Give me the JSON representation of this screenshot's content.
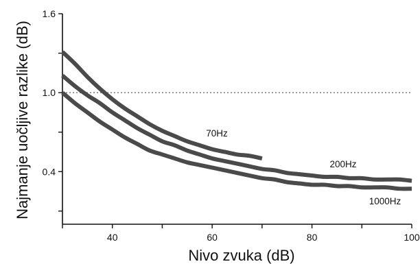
{
  "chart_data": {
    "type": "line",
    "title": "",
    "xlabel": "Nivo zvuka (dB)",
    "ylabel": "Najmanje uočljive razlike (dB)",
    "xlim": [
      30,
      100
    ],
    "ylim": [
      0.0,
      1.6
    ],
    "xticks": [
      40,
      60,
      80,
      100
    ],
    "xtick_labels": [
      "40",
      "60",
      "80",
      "100"
    ],
    "yticks": [
      0.4,
      1.0,
      1.6
    ],
    "ytick_labels": [
      "0.4",
      "1.0",
      "1.6"
    ],
    "grid": false,
    "reference_line": {
      "y": 1.0,
      "style": "dotted"
    },
    "series": [
      {
        "name": "70Hz",
        "x": [
          30,
          32.5,
          35,
          37.5,
          40,
          42.5,
          45,
          47.5,
          50,
          52.5,
          55,
          57.5,
          60,
          62.5,
          65,
          67.5,
          70
        ],
        "y": [
          1.31,
          1.22,
          1.12,
          1.03,
          0.95,
          0.88,
          0.82,
          0.76,
          0.71,
          0.67,
          0.63,
          0.6,
          0.57,
          0.55,
          0.53,
          0.52,
          0.5
        ]
      },
      {
        "name": "200Hz",
        "x": [
          30,
          32.5,
          35,
          37.5,
          40,
          42.5,
          45,
          47.5,
          50,
          52.5,
          55,
          57.5,
          60,
          62.5,
          65,
          67.5,
          70,
          72.5,
          75,
          77.5,
          80,
          82.5,
          85,
          87.5,
          90,
          92.5,
          95,
          97.5,
          100
        ],
        "y": [
          1.13,
          1.05,
          0.98,
          0.92,
          0.85,
          0.79,
          0.73,
          0.68,
          0.63,
          0.6,
          0.56,
          0.53,
          0.5,
          0.48,
          0.46,
          0.44,
          0.42,
          0.41,
          0.39,
          0.38,
          0.37,
          0.36,
          0.36,
          0.35,
          0.35,
          0.34,
          0.34,
          0.34,
          0.33
        ]
      },
      {
        "name": "1000Hz",
        "x": [
          30,
          32.5,
          35,
          37.5,
          40,
          42.5,
          45,
          47.5,
          50,
          52.5,
          55,
          57.5,
          60,
          62.5,
          65,
          67.5,
          70,
          72.5,
          75,
          77.5,
          80,
          82.5,
          85,
          87.5,
          90,
          92.5,
          95,
          97.5,
          100
        ],
        "y": [
          1.0,
          0.92,
          0.85,
          0.78,
          0.72,
          0.66,
          0.61,
          0.56,
          0.53,
          0.5,
          0.47,
          0.45,
          0.43,
          0.41,
          0.39,
          0.37,
          0.35,
          0.34,
          0.32,
          0.31,
          0.3,
          0.3,
          0.29,
          0.29,
          0.28,
          0.28,
          0.28,
          0.27,
          0.27
        ]
      }
    ]
  }
}
